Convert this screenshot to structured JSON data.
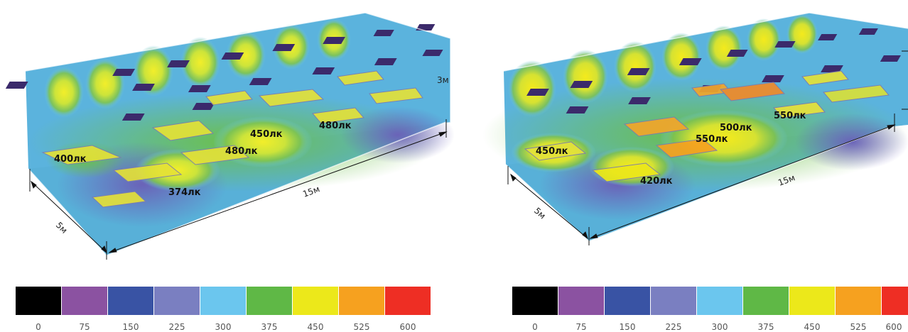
{
  "panels": [
    {
      "dims": {
        "length": "15м",
        "width": "5м",
        "height": "3м"
      },
      "lux": [
        "400лк",
        "374лк",
        "480лк",
        "450лк",
        "480лк"
      ]
    },
    {
      "dims": {
        "length": "15м",
        "width": "5м"
      },
      "lux": [
        "450лк",
        "420лк",
        "550лк",
        "500лк",
        "550лк"
      ]
    }
  ],
  "legend": {
    "colors": [
      "#000000",
      "#8b52a1",
      "#3953a4",
      "#7a7fc1",
      "#6bc6ee",
      "#5fb846",
      "#ece81a",
      "#f6a11f",
      "#ee2e24"
    ],
    "ticks": [
      "0",
      "75",
      "150",
      "225",
      "300",
      "375",
      "450",
      "525",
      "600"
    ]
  }
}
